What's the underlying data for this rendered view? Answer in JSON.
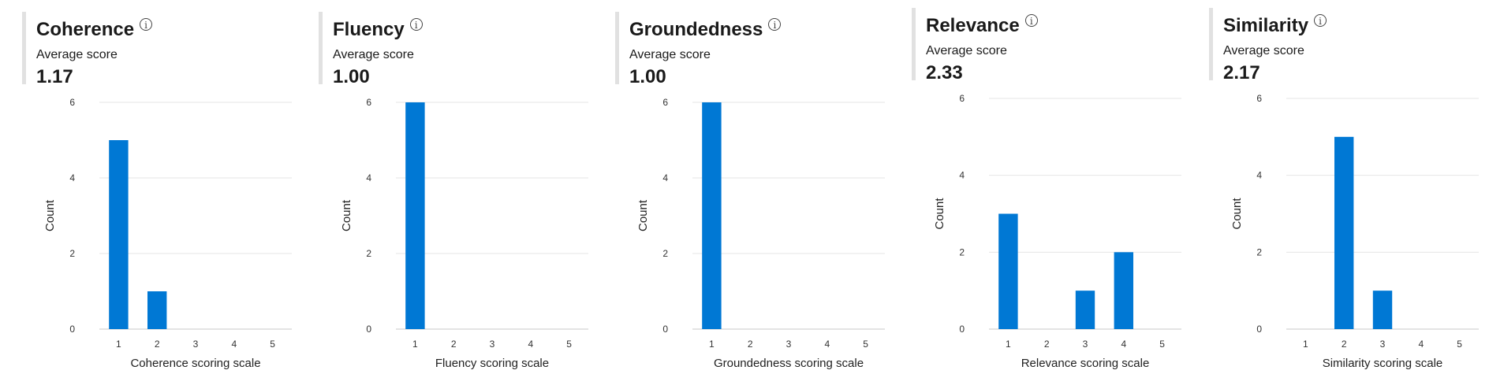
{
  "panels": [
    {
      "title": "Coherence",
      "avg_label": "Average score",
      "avg_value": "1.17",
      "info_icon": "info-icon",
      "chart_data": {
        "type": "bar",
        "categories": [
          "1",
          "2",
          "3",
          "4",
          "5"
        ],
        "values": [
          5,
          1,
          0,
          0,
          0
        ],
        "xlabel": "Coherence scoring scale",
        "ylabel": "Count",
        "ylim": [
          0,
          6
        ],
        "yticks": [
          0,
          2,
          4,
          6
        ],
        "color": "#0078d4",
        "grid": true
      }
    },
    {
      "title": "Fluency",
      "avg_label": "Average score",
      "avg_value": "1.00",
      "info_icon": "info-icon",
      "chart_data": {
        "type": "bar",
        "categories": [
          "1",
          "2",
          "3",
          "4",
          "5"
        ],
        "values": [
          6,
          0,
          0,
          0,
          0
        ],
        "xlabel": "Fluency scoring scale",
        "ylabel": "Count",
        "ylim": [
          0,
          6
        ],
        "yticks": [
          0,
          2,
          4,
          6
        ],
        "color": "#0078d4",
        "grid": true
      }
    },
    {
      "title": "Groundedness",
      "avg_label": "Average score",
      "avg_value": "1.00",
      "info_icon": "info-icon",
      "chart_data": {
        "type": "bar",
        "categories": [
          "1",
          "2",
          "3",
          "4",
          "5"
        ],
        "values": [
          6,
          0,
          0,
          0,
          0
        ],
        "xlabel": "Groundedness scoring scale",
        "ylabel": "Count",
        "ylim": [
          0,
          6
        ],
        "yticks": [
          0,
          2,
          4,
          6
        ],
        "color": "#0078d4",
        "grid": true
      }
    },
    {
      "title": "Relevance",
      "avg_label": "Average score",
      "avg_value": "2.33",
      "info_icon": "info-icon",
      "chart_data": {
        "type": "bar",
        "categories": [
          "1",
          "2",
          "3",
          "4",
          "5"
        ],
        "values": [
          3,
          0,
          1,
          2,
          0
        ],
        "xlabel": "Relevance scoring scale",
        "ylabel": "Count",
        "ylim": [
          0,
          6
        ],
        "yticks": [
          0,
          2,
          4,
          6
        ],
        "color": "#0078d4",
        "grid": true
      }
    },
    {
      "title": "Similarity",
      "avg_label": "Average score",
      "avg_value": "2.17",
      "info_icon": "info-icon",
      "chart_data": {
        "type": "bar",
        "categories": [
          "1",
          "2",
          "3",
          "4",
          "5"
        ],
        "values": [
          0,
          5,
          1,
          0,
          0
        ],
        "xlabel": "Similarity scoring scale",
        "ylabel": "Count",
        "ylim": [
          0,
          6
        ],
        "yticks": [
          0,
          2,
          4,
          6
        ],
        "color": "#0078d4",
        "grid": true
      }
    }
  ]
}
